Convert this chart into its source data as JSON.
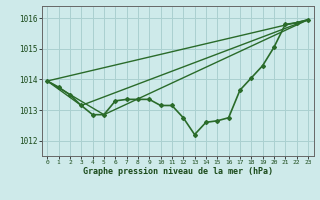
{
  "title": "Graphe pression niveau de la mer (hPa)",
  "background_color": "#ceeaea",
  "grid_color": "#aad0d0",
  "line_color": "#2a6b2a",
  "text_color": "#1a4a1a",
  "xlim": [
    -0.5,
    23.5
  ],
  "ylim": [
    1011.5,
    1016.4
  ],
  "yticks": [
    1012,
    1013,
    1014,
    1015,
    1016
  ],
  "xticks": [
    0,
    1,
    2,
    3,
    4,
    5,
    6,
    7,
    8,
    9,
    10,
    11,
    12,
    13,
    14,
    15,
    16,
    17,
    18,
    19,
    20,
    21,
    22,
    23
  ],
  "series": [
    {
      "x": [
        0,
        1,
        2,
        3,
        4,
        5,
        6,
        7,
        8,
        9,
        10,
        11,
        12,
        13,
        14,
        15,
        16,
        17,
        18,
        19,
        20,
        21,
        22,
        23
      ],
      "y": [
        1013.95,
        1013.75,
        1013.5,
        1013.15,
        1012.85,
        1012.85,
        1013.3,
        1013.35,
        1013.35,
        1013.35,
        1013.15,
        1013.15,
        1012.75,
        1012.2,
        1012.6,
        1012.65,
        1012.75,
        1013.65,
        1014.05,
        1014.45,
        1015.05,
        1015.8,
        1015.85,
        1015.95
      ],
      "with_markers": true,
      "linewidth": 1.2
    },
    {
      "x": [
        0,
        23
      ],
      "y": [
        1013.95,
        1015.95
      ],
      "with_markers": false,
      "linewidth": 1.0
    },
    {
      "x": [
        0,
        5,
        23
      ],
      "y": [
        1013.95,
        1012.85,
        1015.95
      ],
      "with_markers": false,
      "linewidth": 1.0
    },
    {
      "x": [
        0,
        3,
        23
      ],
      "y": [
        1013.95,
        1013.15,
        1015.95
      ],
      "with_markers": false,
      "linewidth": 1.0
    }
  ]
}
